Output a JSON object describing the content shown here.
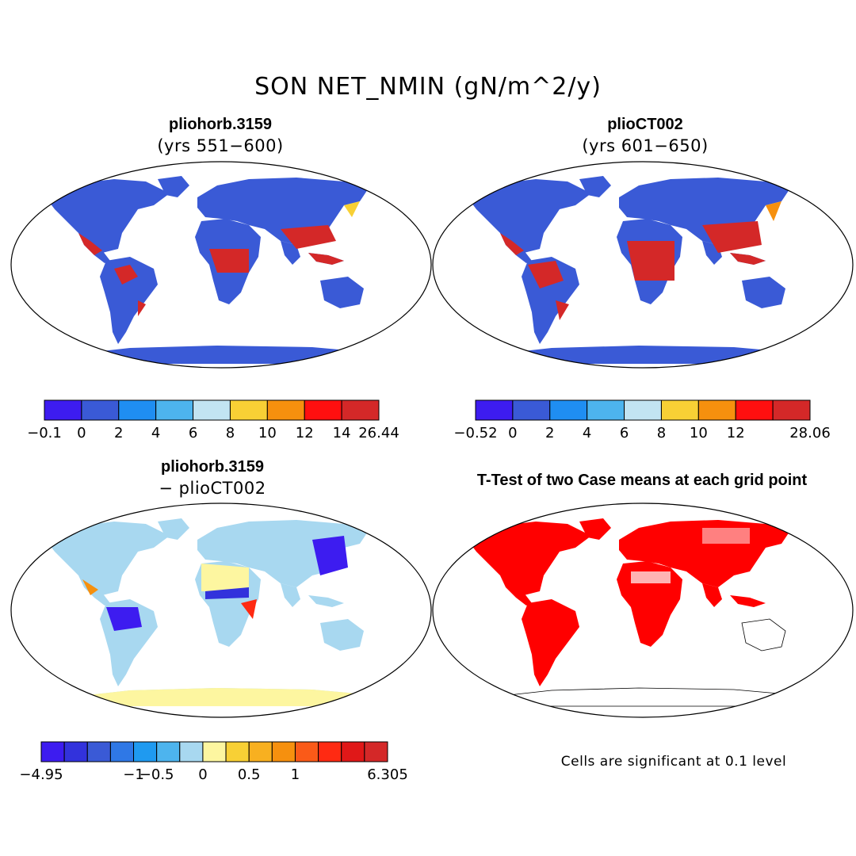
{
  "figure": {
    "title": "SON NET_NMIN (gN/m^2/y)"
  },
  "panels": [
    {
      "id": "case1",
      "title": "pliohorb.3159",
      "subtitle": "(yrs 551−600)",
      "colorbar": {
        "colors": [
          "#3d1cf0",
          "#3a5ad6",
          "#1f8ef2",
          "#4db4ee",
          "#c2e4f2",
          "#f8d035",
          "#f6900e",
          "#ff0f0f",
          "#d42828"
        ],
        "tick_labels": [
          "−0.1",
          "0",
          "2",
          "4",
          "6",
          "8",
          "10",
          "12",
          "14",
          "26.44"
        ]
      }
    },
    {
      "id": "case2",
      "title": "plioCT002",
      "subtitle": "(yrs 601−650)",
      "colorbar": {
        "colors": [
          "#3d1cf0",
          "#3a5ad6",
          "#1f8ef2",
          "#4db4ee",
          "#c2e4f2",
          "#f8d035",
          "#f6900e",
          "#ff0f0f",
          "#d42828"
        ],
        "tick_labels": [
          "−0.52",
          "0",
          "2",
          "4",
          "6",
          "8",
          "10",
          "12",
          "",
          "28.06"
        ]
      }
    },
    {
      "id": "diff",
      "title": "pliohorb.3159",
      "subtitle": "− plioCT002",
      "colorbar": {
        "colors": [
          "#3d1cf0",
          "#3232dc",
          "#3a5ad6",
          "#2f78e6",
          "#1f9af0",
          "#4db4ee",
          "#a8d8f0",
          "#fdf6a0",
          "#f8d035",
          "#f8b020",
          "#f6900e",
          "#fa5a18",
          "#ff2a12",
          "#e01818",
          "#d42828"
        ],
        "tick_labels": [
          "−4.95",
          "−1",
          "−0.5",
          "0",
          "0.5",
          "1",
          "6.305"
        ]
      }
    },
    {
      "id": "ttest",
      "title": "T-Test of two Case means at each grid point",
      "note": "Cells are significant at 0.1 level"
    }
  ],
  "map": {
    "projection": "robinson",
    "ocean_color": "#ffffff",
    "significance_color": "#ff0000"
  }
}
